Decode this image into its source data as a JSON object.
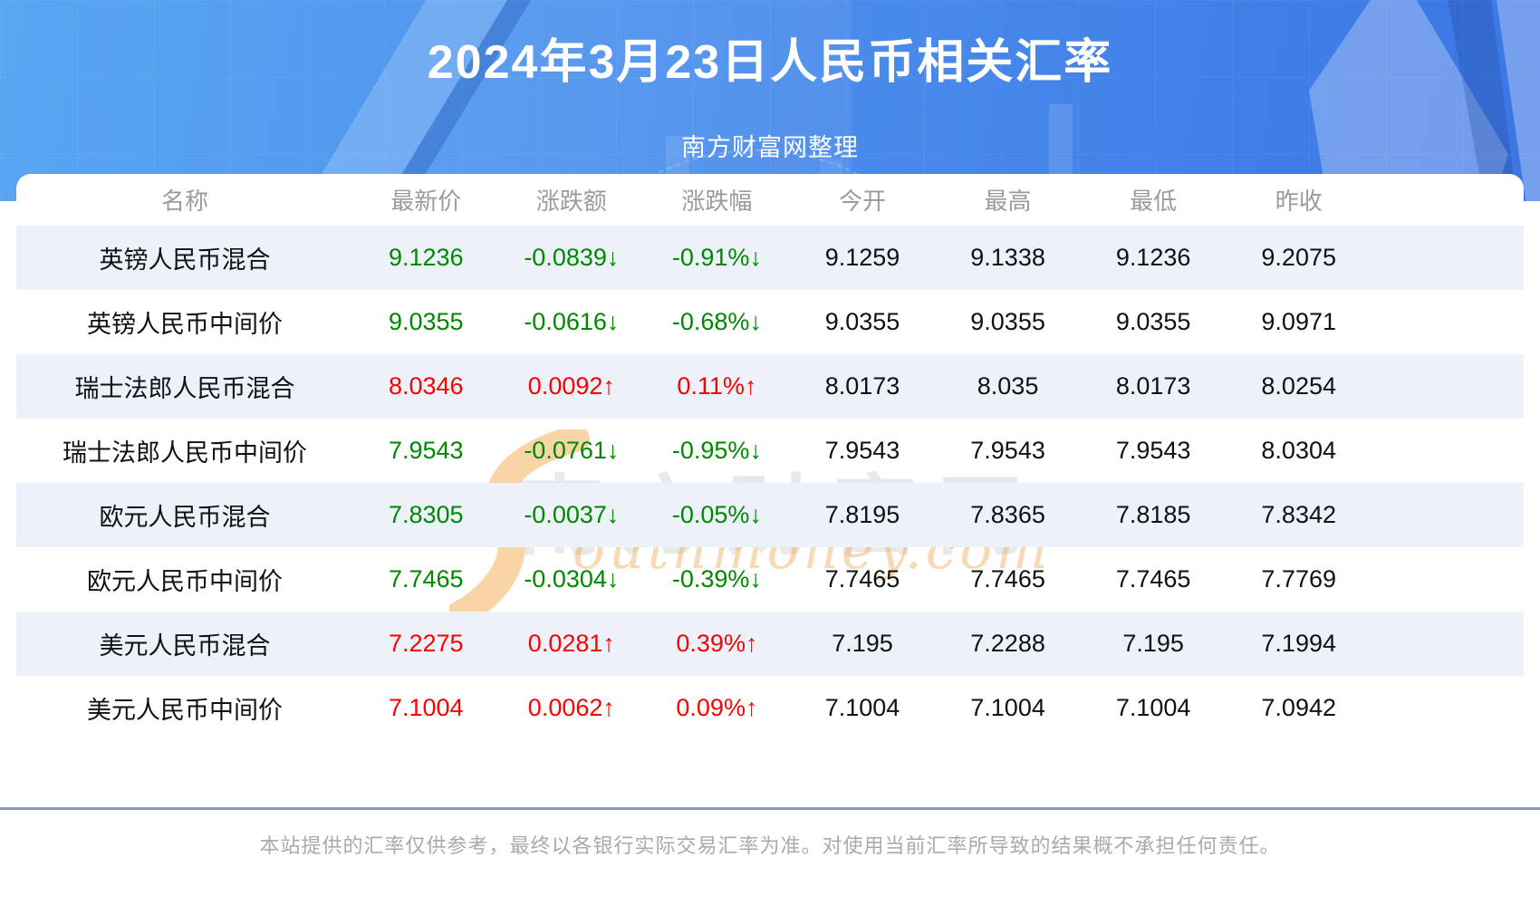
{
  "header": {
    "title": "2024年3月23日人民币相关汇率",
    "subtitle": "南方财富网整理"
  },
  "table": {
    "columns": [
      "名称",
      "最新价",
      "涨跌额",
      "涨跌幅",
      "今开",
      "最高",
      "最低",
      "昨收"
    ],
    "rows": [
      {
        "name": "英镑人民币混合",
        "latest": "9.1236",
        "change": "-0.0839↓",
        "pct": "-0.91%↓",
        "open": "9.1259",
        "high": "9.1338",
        "low": "9.1236",
        "prev": "9.2075",
        "trend": "down"
      },
      {
        "name": "英镑人民币中间价",
        "latest": "9.0355",
        "change": "-0.0616↓",
        "pct": "-0.68%↓",
        "open": "9.0355",
        "high": "9.0355",
        "low": "9.0355",
        "prev": "9.0971",
        "trend": "down"
      },
      {
        "name": "瑞士法郎人民币混合",
        "latest": "8.0346",
        "change": "0.0092↑",
        "pct": "0.11%↑",
        "open": "8.0173",
        "high": "8.035",
        "low": "8.0173",
        "prev": "8.0254",
        "trend": "up"
      },
      {
        "name": "瑞士法郎人民币中间价",
        "latest": "7.9543",
        "change": "-0.0761↓",
        "pct": "-0.95%↓",
        "open": "7.9543",
        "high": "7.9543",
        "low": "7.9543",
        "prev": "8.0304",
        "trend": "down"
      },
      {
        "name": "欧元人民币混合",
        "latest": "7.8305",
        "change": "-0.0037↓",
        "pct": "-0.05%↓",
        "open": "7.8195",
        "high": "7.8365",
        "low": "7.8185",
        "prev": "7.8342",
        "trend": "down"
      },
      {
        "name": "欧元人民币中间价",
        "latest": "7.7465",
        "change": "-0.0304↓",
        "pct": "-0.39%↓",
        "open": "7.7465",
        "high": "7.7465",
        "low": "7.7465",
        "prev": "7.7769",
        "trend": "down"
      },
      {
        "name": "美元人民币混合",
        "latest": "7.2275",
        "change": "0.0281↑",
        "pct": "0.39%↑",
        "open": "7.195",
        "high": "7.2288",
        "low": "7.195",
        "prev": "7.1994",
        "trend": "up"
      },
      {
        "name": "美元人民币中间价",
        "latest": "7.1004",
        "change": "0.0062↑",
        "pct": "0.09%↑",
        "open": "7.1004",
        "high": "7.1004",
        "low": "7.1004",
        "prev": "7.0942",
        "trend": "up"
      }
    ]
  },
  "watermark": {
    "cn": "南方财富网",
    "en": "outhmoney.com"
  },
  "footer": {
    "disclaimer": "本站提供的汇率仅供参考，最终以各银行实际交易汇率为准。对使用当前汇率所导致的结果概不承担任何责任。"
  },
  "colors": {
    "up": "#ff0000",
    "down": "#008800",
    "banner_from": "#5aa6f2",
    "banner_to": "#3b76e5",
    "stripe": "#edf2fa",
    "divider": "#8a9bb8"
  }
}
